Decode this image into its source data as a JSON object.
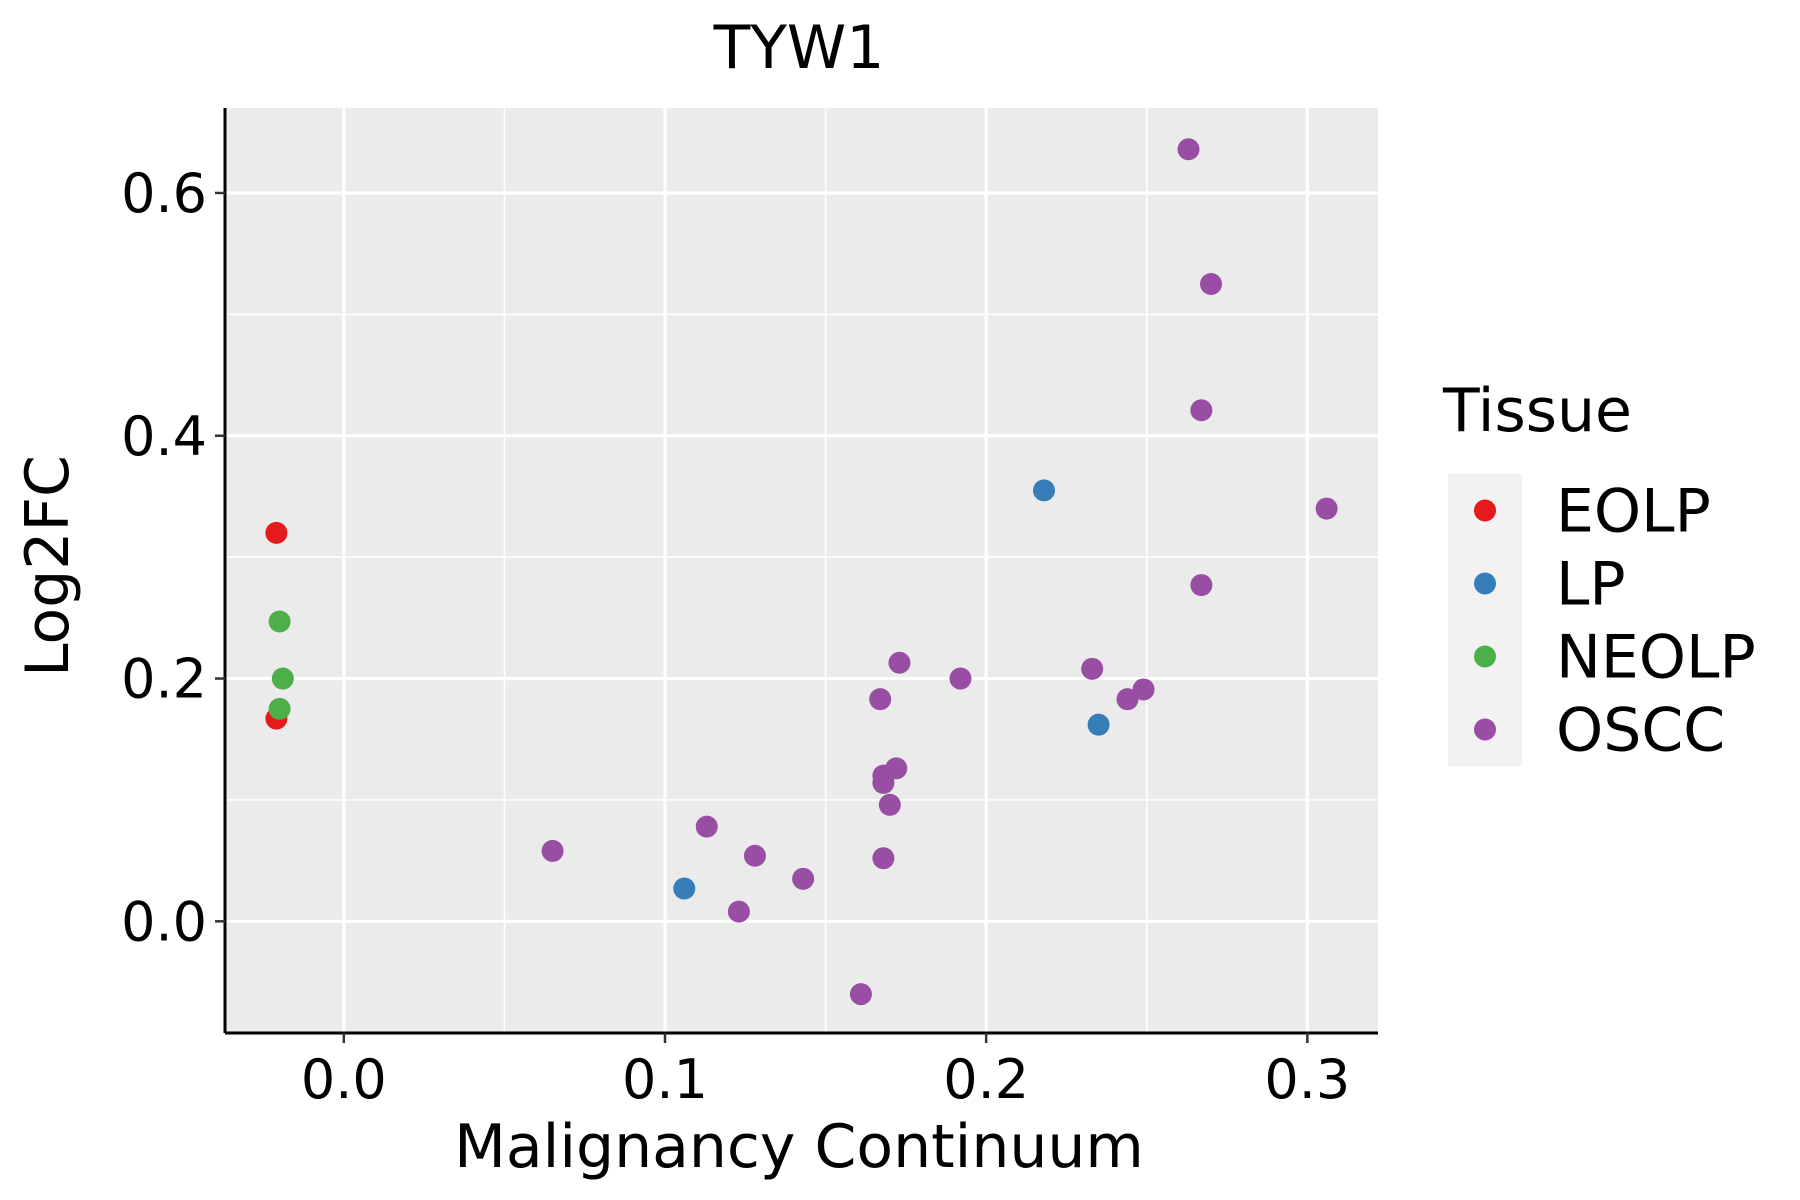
{
  "chart_data": {
    "type": "scatter",
    "title": "TYW1",
    "xlabel": "Malignancy Continuum",
    "ylabel": "Log2FC",
    "xlim": [
      -0.037,
      0.322
    ],
    "ylim": [
      -0.092,
      0.67
    ],
    "x_ticks": [
      0.0,
      0.1,
      0.2,
      0.3
    ],
    "x_tick_labels": [
      "0.0",
      "0.1",
      "0.2",
      "0.3"
    ],
    "x_minor_ticks": [
      0.05,
      0.15,
      0.25
    ],
    "y_ticks": [
      0.0,
      0.2,
      0.4,
      0.6
    ],
    "y_tick_labels": [
      "0.0",
      "0.2",
      "0.4",
      "0.6"
    ],
    "y_minor_ticks": [
      0.1,
      0.3,
      0.5
    ],
    "grid": true,
    "legend_title": "Tissue",
    "legend_position": "right",
    "series": [
      {
        "name": "EOLP",
        "color": "#E41A1C",
        "points": [
          {
            "x": -0.021,
            "y": 0.32
          },
          {
            "x": -0.021,
            "y": 0.167
          }
        ]
      },
      {
        "name": "LP",
        "color": "#377EB8",
        "points": [
          {
            "x": 0.106,
            "y": 0.027
          },
          {
            "x": 0.218,
            "y": 0.355
          },
          {
            "x": 0.235,
            "y": 0.162
          }
        ]
      },
      {
        "name": "NEOLP",
        "color": "#4DAF4A",
        "points": [
          {
            "x": -0.02,
            "y": 0.247
          },
          {
            "x": -0.019,
            "y": 0.2
          },
          {
            "x": -0.02,
            "y": 0.175
          }
        ]
      },
      {
        "name": "OSCC",
        "color": "#984EA3",
        "points": [
          {
            "x": 0.065,
            "y": 0.058
          },
          {
            "x": 0.113,
            "y": 0.078
          },
          {
            "x": 0.123,
            "y": 0.008
          },
          {
            "x": 0.128,
            "y": 0.054
          },
          {
            "x": 0.143,
            "y": 0.035
          },
          {
            "x": 0.161,
            "y": -0.06
          },
          {
            "x": 0.167,
            "y": 0.183
          },
          {
            "x": 0.168,
            "y": 0.12
          },
          {
            "x": 0.168,
            "y": 0.114
          },
          {
            "x": 0.168,
            "y": 0.052
          },
          {
            "x": 0.17,
            "y": 0.096
          },
          {
            "x": 0.172,
            "y": 0.126
          },
          {
            "x": 0.173,
            "y": 0.213
          },
          {
            "x": 0.192,
            "y": 0.2
          },
          {
            "x": 0.233,
            "y": 0.208
          },
          {
            "x": 0.244,
            "y": 0.183
          },
          {
            "x": 0.249,
            "y": 0.191
          },
          {
            "x": 0.263,
            "y": 0.636
          },
          {
            "x": 0.267,
            "y": 0.421
          },
          {
            "x": 0.267,
            "y": 0.277
          },
          {
            "x": 0.27,
            "y": 0.525
          },
          {
            "x": 0.306,
            "y": 0.34
          }
        ]
      }
    ]
  }
}
